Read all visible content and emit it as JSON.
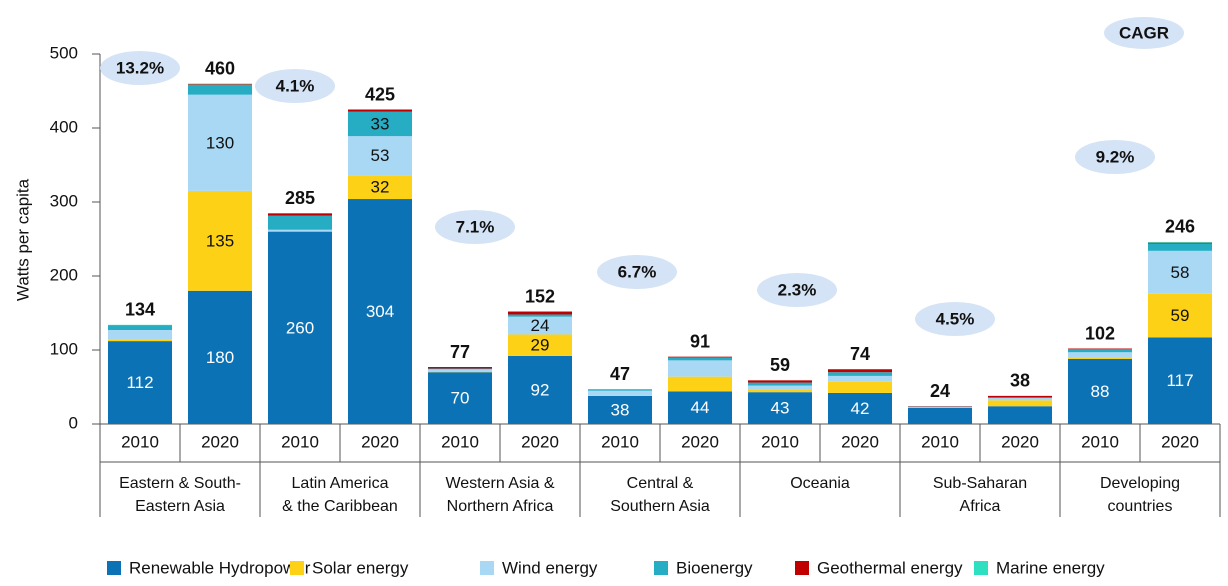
{
  "chart_data": {
    "type": "stacked_bar",
    "y_label": "Watts per capita",
    "ylim": [
      0,
      500
    ],
    "yticks": [
      0,
      100,
      200,
      300,
      400,
      500
    ],
    "categories": [
      "2010",
      "2020",
      "2010",
      "2020",
      "2010",
      "2020",
      "2010",
      "2020",
      "2010",
      "2020",
      "2010",
      "2020",
      "2010",
      "2020"
    ],
    "groups": [
      {
        "label": [
          "Eastern & South-",
          "Eastern Asia"
        ],
        "cagr": "13.2%"
      },
      {
        "label": [
          "Latin America",
          "& the Caribbean"
        ],
        "cagr": "4.1%"
      },
      {
        "label": [
          "Western Asia &",
          "Northern Africa"
        ],
        "cagr": "7.1%"
      },
      {
        "label": [
          "Central &",
          "Southern Asia"
        ],
        "cagr": "6.7%"
      },
      {
        "label": [
          "Oceania"
        ],
        "cagr": "2.3%"
      },
      {
        "label": [
          "Sub-Saharan",
          "Africa"
        ],
        "cagr": "4.5%"
      },
      {
        "label": [
          "Developing",
          "countries"
        ],
        "cagr": "9.2%"
      }
    ],
    "cagr_label": "CAGR",
    "totals": [
      134,
      460,
      285,
      425,
      77,
      152,
      47,
      91,
      59,
      74,
      24,
      38,
      102,
      246
    ],
    "series": [
      {
        "name": "Renewable Hydropower",
        "color": "#0b72b5",
        "values": [
          112,
          180,
          260,
          304,
          70,
          92,
          38,
          44,
          43,
          42,
          22,
          24,
          88,
          117
        ],
        "value_labels": [
          "112",
          "180",
          "260",
          "304",
          "70",
          "92",
          "38",
          "44",
          "43",
          "42",
          null,
          null,
          "88",
          "117"
        ]
      },
      {
        "name": "Solar energy",
        "color": "#fcd116",
        "values": [
          2,
          135,
          0.5,
          32,
          1,
          29,
          1,
          20,
          3,
          15,
          0.5,
          8,
          2,
          59
        ],
        "value_labels": [
          null,
          "135",
          null,
          "32",
          null,
          "29",
          null,
          null,
          null,
          null,
          null,
          null,
          null,
          "59"
        ]
      },
      {
        "name": "Wind energy",
        "color": "#a9d8f5",
        "values": [
          13,
          130,
          2,
          53,
          3,
          24,
          6,
          22,
          6,
          8,
          0.5,
          3,
          7,
          58
        ],
        "value_labels": [
          null,
          "130",
          null,
          "53",
          null,
          "24",
          null,
          null,
          null,
          null,
          null,
          null,
          null,
          "58"
        ]
      },
      {
        "name": "Bioenergy",
        "color": "#26adc4",
        "values": [
          6,
          13,
          19,
          33,
          1,
          3,
          2,
          4,
          4,
          5,
          0.5,
          1,
          4,
          10
        ],
        "value_labels": [
          null,
          null,
          null,
          "33",
          null,
          null,
          null,
          null,
          null,
          null,
          null,
          null,
          null,
          null
        ]
      },
      {
        "name": "Geothermal energy",
        "color": "#c00000",
        "values": [
          0.5,
          1,
          3,
          3,
          2,
          4,
          0,
          1,
          3,
          4,
          0.5,
          2,
          1,
          1
        ]
      },
      {
        "name": "Marine energy",
        "color": "#2ee0c0",
        "values": [
          0.5,
          1,
          0.5,
          0,
          0,
          0,
          0,
          0,
          0,
          0,
          0,
          0,
          0,
          1
        ]
      }
    ]
  }
}
